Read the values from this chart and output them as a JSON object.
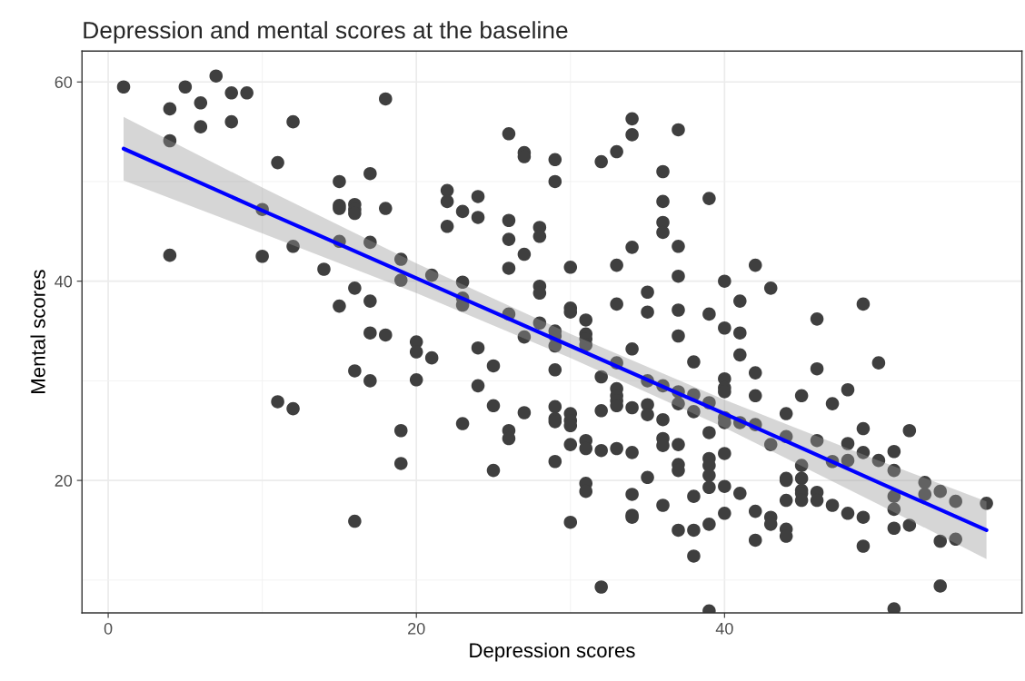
{
  "chart_data": {
    "type": "scatter",
    "title": "Depression and mental scores at the baseline",
    "xlabel": "Depression scores",
    "ylabel": "Mental scores",
    "xlim": [
      -1.7,
      59.3
    ],
    "ylim": [
      6.7,
      63.1
    ],
    "xticks": [
      0,
      20,
      40
    ],
    "yticks": [
      20,
      40,
      60
    ],
    "grid": true,
    "legend": false,
    "marker": "circle",
    "series": [
      {
        "color": "#3f3f3f",
        "x": [
          1,
          4,
          4,
          4,
          5,
          6,
          6,
          7,
          8,
          8,
          9,
          10,
          10,
          11,
          11,
          12,
          12,
          12,
          14,
          15,
          15,
          15,
          15,
          15,
          16,
          16,
          16,
          16,
          16,
          16,
          17,
          17,
          17,
          17,
          17,
          18,
          18,
          18,
          19,
          19,
          19,
          19,
          20,
          20,
          20,
          21,
          21,
          22,
          22,
          22,
          23,
          23,
          23,
          23,
          23,
          24,
          24,
          24,
          24,
          25,
          25,
          25,
          26,
          26,
          26,
          26,
          26,
          26,
          26,
          27,
          27,
          27,
          27,
          27,
          28,
          28,
          28,
          28,
          28,
          29,
          29,
          29,
          29,
          29,
          29,
          29,
          29,
          29,
          29,
          30,
          30,
          30,
          30,
          30,
          30,
          30,
          30,
          31,
          31,
          31,
          31,
          31,
          31,
          31,
          31,
          32,
          32,
          32,
          32,
          32,
          33,
          33,
          33,
          33,
          33,
          33,
          33,
          33,
          33,
          34,
          34,
          34,
          34,
          34,
          34,
          34,
          34,
          34,
          35,
          35,
          35,
          35,
          35,
          35,
          36,
          36,
          36,
          36,
          36,
          36,
          36,
          36,
          36,
          37,
          37,
          37,
          37,
          37,
          37,
          37,
          37,
          37,
          37,
          37,
          38,
          38,
          38,
          38,
          38,
          38,
          39,
          39,
          39,
          39,
          39,
          39,
          39,
          39,
          39,
          39,
          40,
          40,
          40,
          40,
          40,
          40,
          40,
          40,
          40,
          40,
          41,
          41,
          41,
          41,
          41,
          42,
          42,
          42,
          42,
          42,
          42,
          43,
          43,
          43,
          43,
          44,
          44,
          44,
          44,
          44,
          44,
          44,
          45,
          45,
          45,
          45,
          45,
          45,
          46,
          46,
          46,
          46,
          46,
          47,
          47,
          47,
          48,
          48,
          48,
          48,
          49,
          49,
          49,
          49,
          49,
          50,
          50,
          51,
          51,
          51,
          51,
          51,
          51,
          52,
          52,
          53,
          53,
          54,
          54,
          54,
          55,
          55,
          57
        ],
        "values": [
          59.5,
          57.3,
          54.1,
          42.6,
          59.5,
          57.9,
          55.5,
          60.6,
          58.9,
          56.0,
          58.9,
          47.2,
          42.5,
          51.9,
          27.9,
          56.0,
          43.5,
          27.2,
          41.2,
          50.0,
          47.6,
          47.3,
          44.0,
          37.5,
          47.7,
          47.2,
          46.8,
          39.3,
          31.0,
          15.9,
          50.8,
          43.9,
          38.0,
          34.8,
          30.0,
          58.3,
          47.3,
          34.6,
          42.2,
          40.1,
          25.0,
          21.7,
          33.9,
          32.9,
          30.1,
          40.6,
          32.3,
          49.1,
          48.0,
          45.5,
          47.0,
          39.9,
          38.3,
          37.6,
          25.7,
          48.5,
          46.4,
          33.3,
          29.5,
          31.5,
          27.5,
          21.0,
          54.8,
          46.1,
          44.2,
          41.3,
          36.7,
          25.0,
          24.2,
          52.9,
          52.5,
          42.7,
          34.4,
          26.8,
          45.4,
          44.5,
          39.5,
          38.8,
          35.8,
          52.2,
          50.0,
          35.0,
          34.5,
          33.5,
          31.1,
          27.4,
          26.2,
          25.9,
          21.9,
          41.4,
          37.3,
          36.9,
          26.7,
          26.0,
          25.5,
          23.6,
          15.8,
          36.1,
          34.7,
          34.2,
          33.6,
          24.0,
          23.2,
          19.7,
          18.9,
          52.0,
          30.4,
          27.0,
          23.0,
          9.3,
          53.0,
          41.6,
          37.7,
          31.8,
          29.2,
          28.5,
          28.0,
          27.5,
          23.2,
          56.3,
          54.7,
          43.4,
          33.2,
          27.3,
          22.8,
          18.6,
          16.5,
          16.3,
          38.9,
          36.9,
          30.0,
          27.6,
          26.6,
          20.3,
          51.0,
          48.0,
          45.9,
          44.9,
          29.5,
          26.1,
          24.2,
          23.5,
          17.5,
          55.2,
          43.5,
          40.5,
          37.1,
          34.5,
          28.9,
          27.7,
          23.6,
          21.6,
          21.0,
          15.0,
          31.9,
          28.6,
          26.9,
          18.4,
          15.0,
          12.4,
          48.3,
          36.7,
          27.8,
          24.8,
          22.2,
          21.5,
          20.5,
          19.3,
          15.6,
          6.9,
          40.0,
          35.3,
          30.2,
          29.3,
          28.9,
          26.3,
          25.8,
          22.7,
          19.4,
          16.7,
          38.0,
          34.8,
          32.6,
          25.8,
          18.7,
          41.6,
          30.8,
          28.5,
          25.6,
          16.9,
          14.0,
          39.3,
          23.6,
          16.3,
          15.6,
          26.7,
          24.4,
          20.2,
          20.0,
          18.0,
          15.1,
          14.4,
          28.5,
          21.5,
          20.2,
          19.0,
          18.7,
          18.0,
          36.2,
          31.2,
          24.0,
          18.8,
          18.0,
          27.7,
          21.9,
          17.5,
          29.1,
          23.7,
          22.0,
          16.7,
          37.7,
          25.2,
          22.8,
          16.3,
          13.4,
          31.8,
          22.0,
          22.9,
          21.0,
          18.4,
          17.1,
          15.2,
          7.1,
          25.0,
          15.5,
          19.8,
          18.6,
          18.9,
          13.9,
          9.4,
          17.9,
          14.1,
          17.7
        ]
      },
      {
        "type": "line",
        "color": "#0000ff",
        "marker": "none",
        "line_style": "solid",
        "x": [
          1,
          10,
          20,
          30,
          40,
          50,
          57
        ],
        "values": [
          53.3,
          47.1,
          40.3,
          33.5,
          26.7,
          19.8,
          15.0
        ],
        "lower": [
          50.1,
          44.8,
          38.8,
          32.3,
          25.3,
          17.6,
          12.1
        ],
        "upper": [
          56.5,
          49.4,
          41.8,
          34.7,
          28.1,
          22.0,
          17.9
        ]
      }
    ]
  }
}
